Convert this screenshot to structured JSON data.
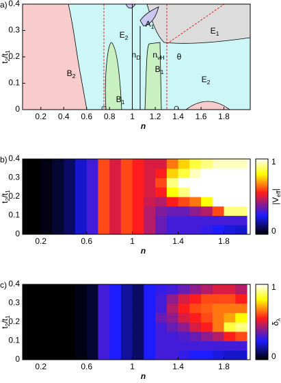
{
  "chart_data": [
    {
      "type": "phase",
      "panel": "a)",
      "xlabel": "n",
      "ylabel": [
        "t",
        "2",
        "/t",
        "1"
      ],
      "xlim": [
        0.04,
        2.03
      ],
      "ylim": [
        0,
        0.4
      ],
      "xticks": [
        0.2,
        0.4,
        0.6,
        0.8,
        1,
        1.2,
        1.4,
        1.6,
        1.8
      ],
      "yticks": [
        0,
        0.1,
        0.2,
        0.3,
        0.4
      ],
      "regions": [
        {
          "label": [
            "B",
            "2"
          ],
          "color": "#e03a3a"
        },
        {
          "label": [
            "E",
            "2"
          ],
          "color": "#1eb4c8"
        },
        {
          "label": [
            "A",
            "1"
          ],
          "color": "#2a2ad0"
        },
        {
          "label": [
            "B",
            "1"
          ],
          "color": "#2aa02a"
        },
        {
          "label": [
            "B",
            "1"
          ],
          "color": "#2aa02a"
        },
        {
          "label": [
            "E",
            "1"
          ],
          "color": "#808080"
        },
        {
          "label": [
            "E",
            "2"
          ],
          "color": "#1eb4c8"
        }
      ],
      "annotations": [
        {
          "label": [
            "n",
            "D"
          ],
          "color": "#000000"
        },
        {
          "label": [
            "n",
            "vH"
          ],
          "color": "#e02020"
        },
        {
          "label": [
            "θ"
          ],
          "color": "#000000"
        }
      ]
    },
    {
      "type": "heatmap",
      "panel": "b)",
      "xlabel": "n",
      "ylabel": [
        "t",
        "2",
        "/t",
        "1"
      ],
      "colorbar_label": [
        "|V",
        "eff",
        "|"
      ],
      "xlim": [
        0.04,
        2.03
      ],
      "ylim": [
        0,
        0.4
      ],
      "clim": [
        0,
        1
      ],
      "xticks": [
        0.2,
        0.6,
        1,
        1.4,
        1.8
      ],
      "yticks": [
        0,
        0.1,
        0.2,
        0.3,
        0.4
      ],
      "cticks": [
        0,
        1
      ],
      "colorscale": [
        [
          0,
          "#000000"
        ],
        [
          0.25,
          "#1c1cff"
        ],
        [
          0.55,
          "#ff1c1c"
        ],
        [
          0.8,
          "#ffff00"
        ],
        [
          1,
          "#ffffff"
        ]
      ],
      "x": [
        0.05,
        0.15,
        0.25,
        0.35,
        0.45,
        0.55,
        0.65,
        0.75,
        0.85,
        0.95,
        1.05,
        1.15,
        1.25,
        1.35,
        1.45,
        1.55,
        1.65,
        1.75,
        1.85,
        1.95
      ],
      "y": [
        0.025,
        0.075,
        0.125,
        0.175,
        0.225,
        0.275,
        0.325,
        0.375
      ],
      "values": [
        [
          0,
          0,
          0.02,
          0.05,
          0.1,
          0.2,
          0.3,
          0.6,
          0.5,
          0.6,
          0.55,
          0.45,
          0.35,
          0.3,
          0.3,
          0.3,
          0.28,
          0.25,
          0.22,
          0.2
        ],
        [
          0,
          0,
          0.02,
          0.05,
          0.1,
          0.2,
          0.3,
          0.6,
          0.5,
          0.6,
          0.55,
          0.45,
          0.35,
          0.3,
          0.3,
          0.3,
          0.3,
          0.3,
          0.3,
          0.3
        ],
        [
          0,
          0,
          0.02,
          0.05,
          0.1,
          0.2,
          0.3,
          0.6,
          0.5,
          0.6,
          0.55,
          0.45,
          0.38,
          0.35,
          0.35,
          0.4,
          0.45,
          0.6,
          0.9,
          0.9
        ],
        [
          0,
          0,
          0.02,
          0.05,
          0.1,
          0.2,
          0.3,
          0.6,
          0.5,
          0.6,
          0.55,
          0.48,
          0.45,
          0.55,
          0.6,
          0.65,
          0.8,
          1,
          1,
          1
        ],
        [
          0,
          0,
          0.02,
          0.05,
          0.1,
          0.2,
          0.3,
          0.6,
          0.5,
          0.6,
          0.55,
          0.5,
          0.55,
          0.8,
          0.9,
          1,
          1,
          1,
          1,
          1
        ],
        [
          0,
          0,
          0.02,
          0.05,
          0.1,
          0.2,
          0.3,
          0.6,
          0.5,
          0.6,
          0.55,
          0.5,
          0.6,
          0.9,
          1,
          1,
          1,
          1,
          1,
          1
        ],
        [
          0,
          0,
          0.02,
          0.05,
          0.1,
          0.2,
          0.3,
          0.6,
          0.5,
          0.6,
          0.55,
          0.5,
          0.55,
          0.75,
          0.85,
          0.95,
          1,
          1,
          1,
          1
        ],
        [
          0,
          0,
          0.02,
          0.05,
          0.1,
          0.2,
          0.3,
          0.6,
          0.5,
          0.6,
          0.55,
          0.5,
          0.5,
          0.65,
          0.75,
          0.85,
          0.9,
          0.95,
          0.95,
          0.95
        ]
      ]
    },
    {
      "type": "heatmap",
      "panel": "c)",
      "xlabel": "n",
      "ylabel": [
        "t",
        "2",
        "/t",
        "1"
      ],
      "colorbar_label": [
        "δ",
        "λ"
      ],
      "xlim": [
        0.04,
        2.03
      ],
      "ylim": [
        0,
        0.4
      ],
      "clim": [
        0,
        1
      ],
      "xticks": [
        0.2,
        0.6,
        1,
        1.4,
        1.8
      ],
      "yticks": [
        0,
        0.1,
        0.2,
        0.3,
        0.4
      ],
      "cticks": [
        0,
        1
      ],
      "colorscale": [
        [
          0,
          "#000000"
        ],
        [
          0.25,
          "#1c1cff"
        ],
        [
          0.55,
          "#ff1c1c"
        ],
        [
          0.8,
          "#ffff00"
        ],
        [
          1,
          "#ffffff"
        ]
      ],
      "x": [
        0.05,
        0.15,
        0.25,
        0.35,
        0.45,
        0.55,
        0.65,
        0.75,
        0.85,
        0.95,
        1.05,
        1.15,
        1.25,
        1.35,
        1.45,
        1.55,
        1.65,
        1.75,
        1.85,
        1.95
      ],
      "y": [
        0.025,
        0.075,
        0.125,
        0.175,
        0.225,
        0.275,
        0.325,
        0.375
      ],
      "values": [
        [
          0,
          0,
          0,
          0,
          0,
          0.02,
          0.05,
          0.3,
          0.25,
          0.15,
          0.1,
          0.25,
          0.3,
          0.3,
          0.28,
          0.25,
          0.25,
          0.22,
          0.2,
          0.2
        ],
        [
          0,
          0,
          0,
          0,
          0,
          0.02,
          0.05,
          0.3,
          0.25,
          0.15,
          0.1,
          0.25,
          0.3,
          0.3,
          0.3,
          0.3,
          0.3,
          0.3,
          0.3,
          0.3
        ],
        [
          0,
          0,
          0,
          0,
          0,
          0.02,
          0.05,
          0.3,
          0.25,
          0.15,
          0.1,
          0.25,
          0.3,
          0.3,
          0.32,
          0.35,
          0.4,
          0.45,
          0.55,
          0.6
        ],
        [
          0,
          0,
          0,
          0,
          0,
          0.02,
          0.05,
          0.3,
          0.25,
          0.15,
          0.1,
          0.25,
          0.3,
          0.35,
          0.4,
          0.5,
          0.55,
          0.65,
          0.85,
          0.9
        ],
        [
          0,
          0,
          0,
          0,
          0,
          0.02,
          0.05,
          0.3,
          0.25,
          0.15,
          0.1,
          0.25,
          0.35,
          0.4,
          0.5,
          0.55,
          0.6,
          0.65,
          0.7,
          0.8
        ],
        [
          0,
          0,
          0,
          0,
          0,
          0.02,
          0.05,
          0.3,
          0.25,
          0.15,
          0.1,
          0.25,
          0.3,
          0.45,
          0.55,
          0.6,
          0.62,
          0.65,
          0.65,
          0.65
        ],
        [
          0,
          0,
          0,
          0,
          0,
          0.02,
          0.05,
          0.3,
          0.25,
          0.15,
          0.1,
          0.25,
          0.3,
          0.4,
          0.5,
          0.55,
          0.6,
          0.6,
          0.6,
          0.55
        ],
        [
          0,
          0,
          0,
          0,
          0,
          0.02,
          0.05,
          0.3,
          0.25,
          0.15,
          0.1,
          0.25,
          0.28,
          0.3,
          0.35,
          0.4,
          0.45,
          0.5,
          0.5,
          0.45
        ]
      ]
    }
  ]
}
